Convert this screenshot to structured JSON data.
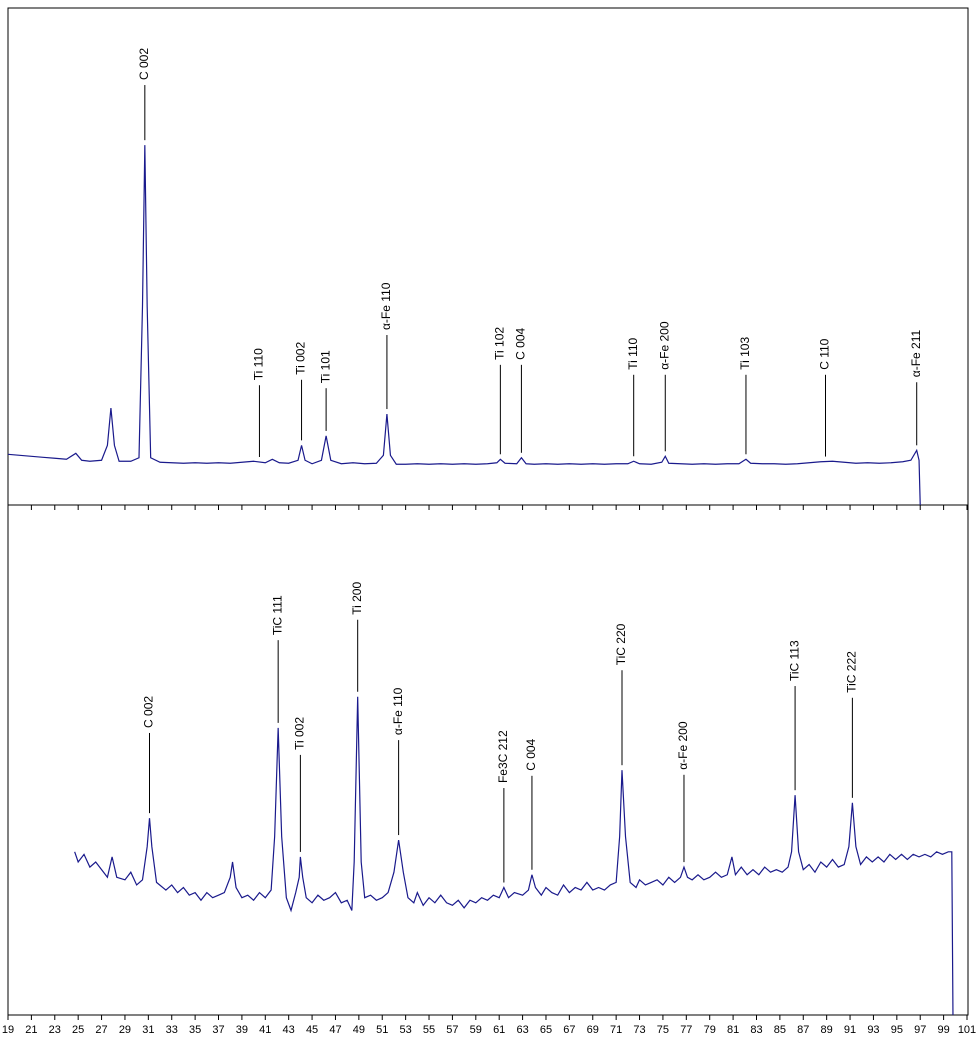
{
  "chart_data": [
    {
      "type": "line",
      "color": "#1a1a8c",
      "xlim": [
        19,
        101
      ],
      "ylim": [
        0,
        100
      ],
      "x": [
        19,
        20,
        21,
        22,
        23,
        24,
        24.8,
        25.3,
        26,
        27,
        27.5,
        27.8,
        28.1,
        28.5,
        29.5,
        30.2,
        30.5,
        30.7,
        30.9,
        31.2,
        32,
        33,
        34,
        35,
        36,
        37,
        38,
        39,
        40,
        41,
        41.6,
        42.2,
        43,
        43.8,
        44.1,
        44.4,
        45,
        45.8,
        46.2,
        46.6,
        47.5,
        48.5,
        49.5,
        50.5,
        51.1,
        51.4,
        51.7,
        52.2,
        53,
        54,
        55,
        56,
        57,
        58,
        59,
        60,
        60.8,
        61.1,
        61.5,
        62.5,
        62.9,
        63.3,
        64,
        65,
        66,
        67,
        68,
        69,
        70,
        71,
        72,
        72.5,
        73,
        74,
        74.9,
        75.2,
        75.5,
        76.5,
        77.5,
        78.5,
        79.5,
        80.5,
        81.5,
        82.1,
        82.5,
        83.5,
        84.5,
        85.5,
        86.5,
        87.5,
        88.5,
        89.5,
        90.5,
        91.5,
        92.5,
        93.5,
        94.5,
        95.5,
        96.2,
        96.7,
        96.9,
        97
      ],
      "values": [
        10.2,
        10.0,
        9.8,
        9.6,
        9.4,
        9.2,
        10.4,
        9.0,
        8.8,
        9.0,
        12,
        19.5,
        12,
        8.8,
        8.8,
        9.5,
        40,
        72.4,
        40,
        9.5,
        8.6,
        8.5,
        8.4,
        8.5,
        8.4,
        8.5,
        8.4,
        8.6,
        8.8,
        8.5,
        9.2,
        8.5,
        8.4,
        9,
        12,
        9,
        8.3,
        9,
        13.9,
        9,
        8.3,
        8.5,
        8.3,
        8.4,
        10,
        18.3,
        10,
        8.2,
        8.2,
        8.3,
        8.2,
        8.3,
        8.2,
        8.3,
        8.2,
        8.3,
        8.5,
        9.2,
        8.4,
        8.3,
        9.5,
        8.3,
        8.2,
        8.3,
        8.2,
        8.3,
        8.2,
        8.3,
        8.2,
        8.3,
        8.3,
        8.8,
        8.3,
        8.2,
        8.6,
        9.8,
        8.4,
        8.3,
        8.2,
        8.3,
        8.2,
        8.3,
        8.3,
        9.2,
        8.4,
        8.3,
        8.3,
        8.2,
        8.3,
        8.5,
        8.7,
        8.8,
        8.6,
        8.4,
        8.5,
        8.4,
        8.5,
        8.7,
        9,
        11,
        9,
        0
      ],
      "annotations": [
        {
          "text": "C 002",
          "x": 30.7,
          "y": 84.5
        },
        {
          "text": "Ti 110",
          "x": 40.5,
          "y": 24.1
        },
        {
          "text": "Ti 002",
          "x": 44.1,
          "y": 25.2
        },
        {
          "text": "Ti 101",
          "x": 46.2,
          "y": 23.5
        },
        {
          "text": "α-Fe 110",
          "x": 51.4,
          "y": 34.2
        },
        {
          "text": "Ti 102",
          "x": 61.1,
          "y": 28.2
        },
        {
          "text": "C 004",
          "x": 62.9,
          "y": 28.2
        },
        {
          "text": "Ti 110",
          "x": 72.5,
          "y": 26.2
        },
        {
          "text": "α-Fe 200",
          "x": 75.2,
          "y": 26.2
        },
        {
          "text": "Ti 103",
          "x": 82.1,
          "y": 26.2
        },
        {
          "text": "C 110",
          "x": 88.9,
          "y": 26.2
        },
        {
          "text": "α-Fe 211",
          "x": 96.7,
          "y": 24.7
        }
      ]
    },
    {
      "type": "line",
      "color": "#1a1a8c",
      "xlim": [
        19,
        101
      ],
      "ylim": [
        0,
        100
      ],
      "xticks": [
        19,
        21,
        23,
        25,
        27,
        29,
        31,
        33,
        35,
        37,
        39,
        41,
        43,
        45,
        47,
        49,
        51,
        53,
        55,
        57,
        59,
        61,
        63,
        65,
        67,
        69,
        71,
        73,
        75,
        77,
        79,
        81,
        83,
        85,
        87,
        89,
        91,
        93,
        95,
        97,
        99,
        101
      ],
      "x": [
        24.7,
        25,
        25.5,
        26,
        26.5,
        27,
        27.5,
        27.9,
        28.3,
        29,
        29.5,
        30,
        30.5,
        30.9,
        31.1,
        31.3,
        31.7,
        32.5,
        33,
        33.5,
        34,
        34.5,
        35,
        35.5,
        36,
        36.5,
        37,
        37.5,
        38,
        38.2,
        38.5,
        39,
        39.5,
        40,
        40.5,
        41,
        41.5,
        41.8,
        42.1,
        42.4,
        42.8,
        43.2,
        43.6,
        43.9,
        44,
        44.2,
        44.5,
        45,
        45.5,
        46,
        46.5,
        47,
        47.5,
        48,
        48.4,
        48.6,
        48.9,
        49.2,
        49.5,
        50,
        50.5,
        51,
        51.5,
        52,
        52.4,
        52.8,
        53.2,
        53.7,
        54,
        54.5,
        55,
        55.5,
        56,
        56.5,
        57,
        57.5,
        58,
        58.5,
        59,
        59.5,
        60,
        60.5,
        61,
        61.4,
        61.8,
        62.3,
        63,
        63.5,
        63.8,
        64.1,
        64.6,
        65,
        65.5,
        66,
        66.5,
        67,
        67.5,
        68,
        68.5,
        69,
        69.5,
        70,
        70.5,
        71,
        71.3,
        71.5,
        71.8,
        72.2,
        72.7,
        73,
        73.5,
        74,
        74.5,
        75,
        75.5,
        76,
        76.5,
        76.8,
        77.1,
        77.5,
        78,
        78.5,
        79,
        79.5,
        80,
        80.5,
        80.9,
        81.2,
        81.7,
        82.2,
        82.7,
        83.2,
        83.7,
        84.2,
        84.7,
        85.2,
        85.7,
        86,
        86.3,
        86.6,
        87,
        87.5,
        88,
        88.5,
        89,
        89.5,
        90,
        90.5,
        90.9,
        91.2,
        91.5,
        91.9,
        92.4,
        92.9,
        93.4,
        93.9,
        94.4,
        94.9,
        95.4,
        95.9,
        96.4,
        96.9,
        97.4,
        97.9,
        98.4,
        98.9,
        99.4,
        99.7,
        99.8
      ],
      "values": [
        32,
        30,
        31.5,
        29,
        30,
        28.5,
        27,
        31,
        27,
        26.5,
        28,
        25.5,
        26.5,
        33,
        38.6,
        33,
        26,
        24.5,
        25.5,
        24,
        25,
        23.5,
        24,
        22.5,
        24,
        23,
        23.5,
        24,
        27,
        30,
        25,
        23,
        23.5,
        22.5,
        24,
        23,
        24.5,
        35,
        56.3,
        35,
        23,
        20.5,
        24,
        27,
        31,
        27,
        23,
        22,
        23.5,
        22.5,
        23,
        24,
        22,
        22.5,
        20.5,
        30,
        62.4,
        30,
        23,
        23.5,
        22.5,
        23,
        24,
        28,
        34.3,
        28,
        23,
        22,
        24,
        21.5,
        23,
        22,
        23.5,
        22,
        21.5,
        22.5,
        21,
        22.5,
        22,
        23,
        22.5,
        23.5,
        23,
        25,
        23,
        24,
        23.5,
        24.5,
        27.5,
        25,
        23.5,
        25,
        24,
        23.5,
        25.5,
        24,
        25,
        24.5,
        26,
        24.5,
        25,
        24.5,
        25.5,
        26,
        35,
        48,
        35,
        26,
        25,
        26.5,
        25.5,
        26,
        26.5,
        25.5,
        27,
        26,
        27,
        29,
        27,
        26.5,
        27.5,
        26.5,
        27,
        28,
        27,
        27.5,
        31,
        27.5,
        29,
        27.5,
        28.5,
        27.5,
        29,
        28,
        28.5,
        28,
        29,
        32,
        43.1,
        32,
        28.5,
        29.5,
        28,
        30,
        29,
        30.5,
        29,
        29.5,
        33,
        41.6,
        33,
        29.5,
        31,
        30,
        31,
        30,
        31.5,
        30.5,
        31.5,
        30.5,
        31.5,
        31,
        31.5,
        31,
        32,
        31.5,
        32,
        32,
        0
      ],
      "annotations": [
        {
          "text": "C 002",
          "x": 31.1,
          "y": 55.3
        },
        {
          "text": "TiC 111",
          "x": 42.1,
          "y": 73.5
        },
        {
          "text": "Ti 002",
          "x": 44,
          "y": 51
        },
        {
          "text": "Ti 200",
          "x": 48.9,
          "y": 77.5
        },
        {
          "text": "α-Fe 110",
          "x": 52.4,
          "y": 53.9
        },
        {
          "text": "Fe3C 212",
          "x": 61.4,
          "y": 44.5
        },
        {
          "text": "C 004",
          "x": 63.8,
          "y": 46.9
        },
        {
          "text": "TiC 220",
          "x": 71.5,
          "y": 67.6
        },
        {
          "text": "α-Fe 200",
          "x": 76.8,
          "y": 47.1
        },
        {
          "text": "TiC 113",
          "x": 86.3,
          "y": 64.5
        },
        {
          "text": "TiC 222",
          "x": 91.2,
          "y": 62.2
        }
      ]
    }
  ]
}
